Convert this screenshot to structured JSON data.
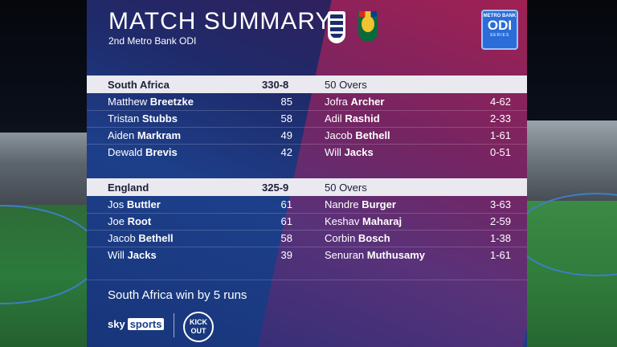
{
  "header": {
    "title": "MATCH SUMMARY",
    "subtitle": "2nd Metro Bank ODI",
    "badge_top": "METRO BANK",
    "badge_main": "ODI",
    "badge_bottom": "SERIES"
  },
  "innings": [
    {
      "team": "South Africa",
      "score": "330-8",
      "overs": "50 Overs",
      "batting": [
        {
          "first": "Matthew",
          "last": "Breetzke",
          "runs": "85"
        },
        {
          "first": "Tristan",
          "last": "Stubbs",
          "runs": "58"
        },
        {
          "first": "Aiden",
          "last": "Markram",
          "runs": "49"
        },
        {
          "first": "Dewald",
          "last": "Brevis",
          "runs": "42"
        }
      ],
      "bowling": [
        {
          "first": "Jofra",
          "last": "Archer",
          "figures": "4-62"
        },
        {
          "first": "Adil",
          "last": "Rashid",
          "figures": "2-33"
        },
        {
          "first": "Jacob",
          "last": "Bethell",
          "figures": "1-61"
        },
        {
          "first": "Will",
          "last": "Jacks",
          "figures": "0-51"
        }
      ]
    },
    {
      "team": "England",
      "score": "325-9",
      "overs": "50 Overs",
      "batting": [
        {
          "first": "Jos",
          "last": "Buttler",
          "runs": "61"
        },
        {
          "first": "Joe",
          "last": "Root",
          "runs": "61"
        },
        {
          "first": "Jacob",
          "last": "Bethell",
          "runs": "58"
        },
        {
          "first": "Will",
          "last": "Jacks",
          "runs": "39"
        }
      ],
      "bowling": [
        {
          "first": "Nandre",
          "last": "Burger",
          "figures": "3-63"
        },
        {
          "first": "Keshav",
          "last": "Maharaj",
          "figures": "2-59"
        },
        {
          "first": "Corbin",
          "last": "Bosch",
          "figures": "1-38"
        },
        {
          "first": "Senuran",
          "last": "Muthusamy",
          "figures": "1-61"
        }
      ]
    }
  ],
  "result": "South Africa win by 5 runs",
  "branding": {
    "sky": "sky",
    "sports": "sports",
    "kickout": "KICK OUT"
  }
}
